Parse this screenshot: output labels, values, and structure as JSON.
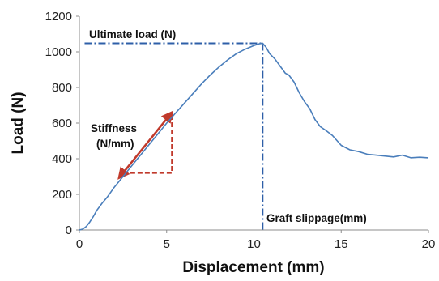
{
  "chart_data": {
    "type": "line",
    "xlabel": "Displacement (mm)",
    "ylabel": "Load (N)",
    "xlim": [
      0,
      20
    ],
    "ylim": [
      0,
      1200
    ],
    "xticks": [
      "0",
      "5",
      "10",
      "15",
      "20"
    ],
    "yticks": [
      "0",
      "200",
      "400",
      "600",
      "800",
      "1000",
      "1200"
    ],
    "grid": false,
    "colors": {
      "series": "#4a7ebb",
      "guide": "#2e5fa8",
      "stiffness_arrow": "#c0392b",
      "axis": "#8c8c8c"
    },
    "series": [
      {
        "x": [
          0,
          0.2,
          0.4,
          0.6,
          0.8,
          1.0,
          1.3,
          1.6,
          2.0,
          2.5,
          3.0,
          3.5,
          4.0,
          4.5,
          5.0,
          5.5,
          6.0,
          6.5,
          7.0,
          7.5,
          8.0,
          8.5,
          9.0,
          9.5,
          10.0,
          10.3,
          10.5,
          10.7,
          10.9,
          11.2,
          11.5,
          11.8,
          12.0,
          12.3,
          12.6,
          12.9,
          13.2,
          13.5,
          13.8,
          14.1,
          14.5,
          15.0,
          15.5,
          16.0,
          16.5,
          17.0,
          17.5,
          18.0,
          18.5,
          19.0,
          19.5,
          20.0
        ],
        "y": [
          0,
          5,
          20,
          45,
          75,
          110,
          150,
          185,
          240,
          300,
          360,
          420,
          480,
          540,
          600,
          655,
          710,
          765,
          820,
          870,
          915,
          955,
          990,
          1015,
          1035,
          1045,
          1048,
          1025,
          990,
          960,
          920,
          880,
          870,
          830,
          770,
          720,
          680,
          620,
          580,
          560,
          530,
          475,
          450,
          440,
          425,
          420,
          415,
          410,
          420,
          405,
          408,
          405
        ]
      }
    ],
    "annotations": {
      "ultimate_load": {
        "label": "Ultimate load (N)",
        "x": 10.5,
        "y": 1048
      },
      "graft_slippage": {
        "label": "Graft slippage(mm)",
        "x": 10.5
      },
      "stiffness": {
        "label_line1": "Stiffness",
        "label_line2": "(N/mm)",
        "triangle": {
          "x0": 2.5,
          "y0": 320,
          "x1": 5.3,
          "y1": 660
        }
      }
    }
  }
}
